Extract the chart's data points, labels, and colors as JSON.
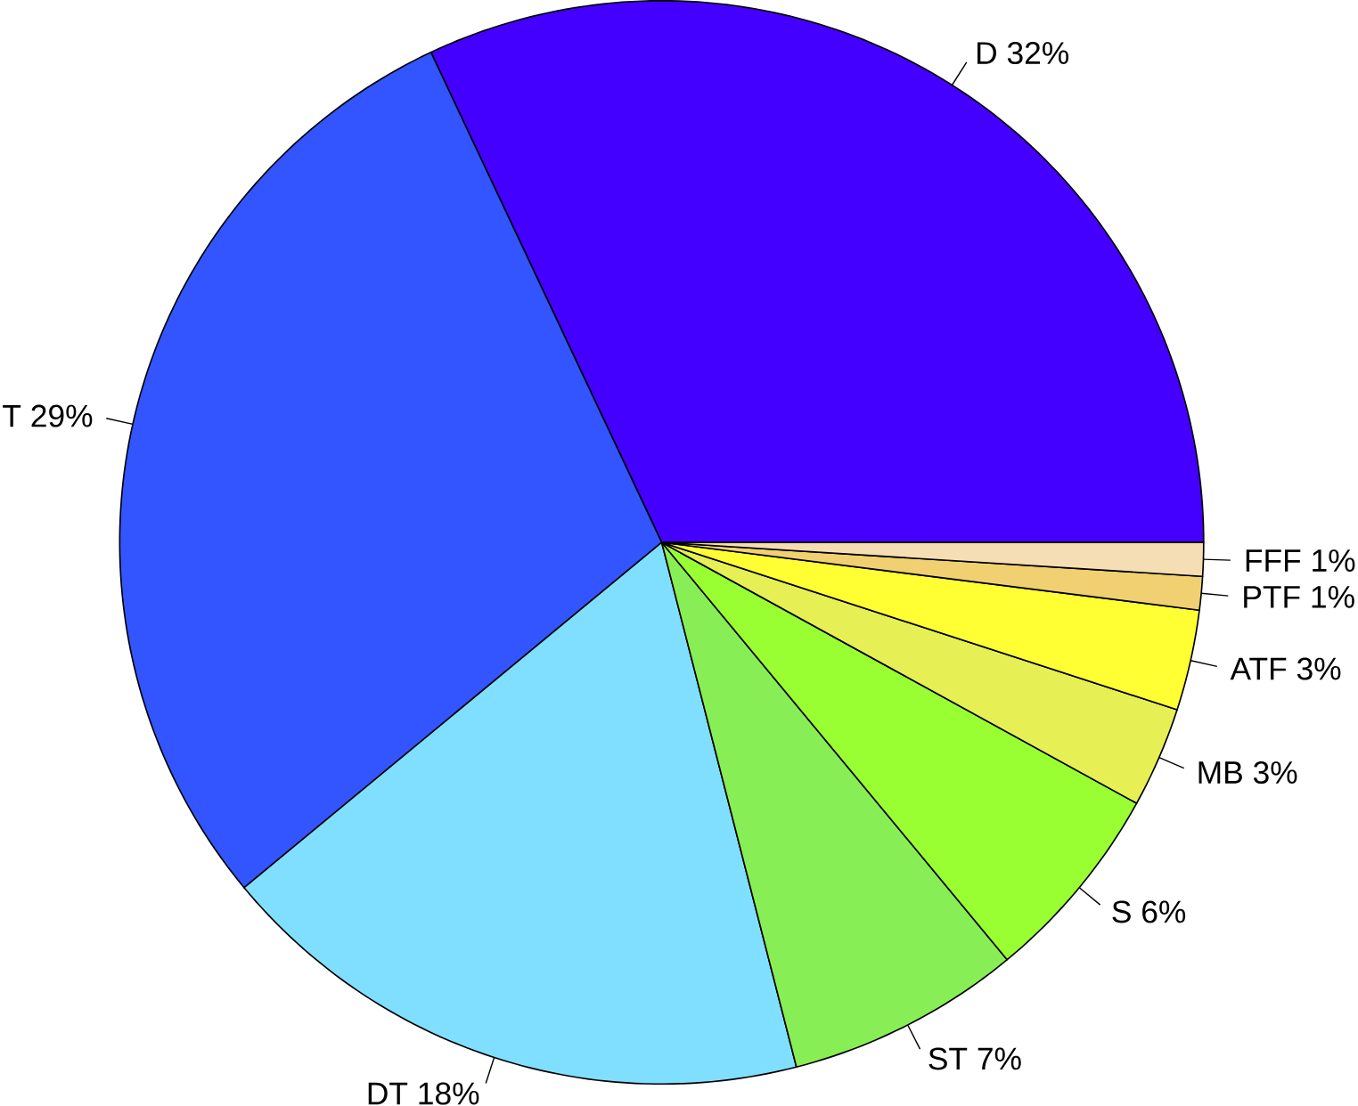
{
  "chart_data": {
    "type": "pie",
    "categories": [
      "D",
      "T",
      "DT",
      "ST",
      "S",
      "MB",
      "ATF",
      "PTF",
      "FFF"
    ],
    "values": [
      32,
      29,
      18,
      7,
      6,
      3,
      3,
      1,
      1
    ],
    "value_labels": [
      "32%",
      "29%",
      "18%",
      "7%",
      "6%",
      "3%",
      "3%",
      "1%",
      "1%"
    ],
    "colors": [
      "#4400ff",
      "#3355ff",
      "#80dfff",
      "#88ee55",
      "#99ff33",
      "#e6f055",
      "#ffff33",
      "#f0d070",
      "#f5deb3"
    ]
  }
}
